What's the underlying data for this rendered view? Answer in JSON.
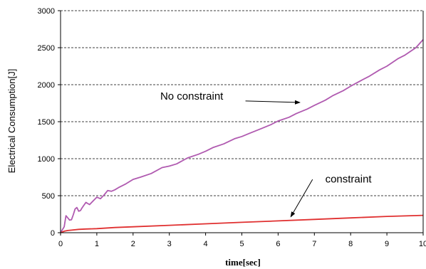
{
  "chart_data": {
    "type": "line",
    "title": "",
    "xlabel": "time[sec]",
    "ylabel": "Electrical Consumption[J]",
    "xlim": [
      0,
      10
    ],
    "ylim": [
      0,
      3000
    ],
    "x_ticks": [
      "0",
      "1",
      "2",
      "3",
      "4",
      "5",
      "6",
      "7",
      "8",
      "9",
      "10"
    ],
    "y_ticks": [
      "0",
      "500",
      "1000",
      "1500",
      "2000",
      "2500",
      "3000"
    ],
    "grid": "horizontal dashed",
    "legend": "none",
    "series": [
      {
        "color": "#b05ab0",
        "x": [
          0,
          0.1,
          0.15,
          0.2,
          0.25,
          0.3,
          0.35,
          0.4,
          0.45,
          0.5,
          0.55,
          0.6,
          0.7,
          0.8,
          0.9,
          1.0,
          1.1,
          1.2,
          1.3,
          1.4,
          1.5,
          1.6,
          1.8,
          2.0,
          2.2,
          2.5,
          2.8,
          3.0,
          3.2,
          3.5,
          3.8,
          4.0,
          4.2,
          4.5,
          4.8,
          5.0,
          5.2,
          5.5,
          5.8,
          6.0,
          6.3,
          6.5,
          6.8,
          7.0,
          7.3,
          7.5,
          7.8,
          8.0,
          8.3,
          8.5,
          8.8,
          9.0,
          9.3,
          9.5,
          9.8,
          10.0
        ],
        "y": [
          0,
          80,
          230,
          200,
          170,
          175,
          240,
          320,
          340,
          290,
          300,
          340,
          410,
          380,
          430,
          480,
          460,
          510,
          570,
          560,
          580,
          610,
          660,
          720,
          750,
          800,
          880,
          900,
          930,
          1010,
          1060,
          1100,
          1150,
          1200,
          1270,
          1300,
          1340,
          1400,
          1460,
          1510,
          1560,
          1610,
          1670,
          1720,
          1790,
          1850,
          1920,
          1980,
          2060,
          2110,
          2200,
          2250,
          2350,
          2400,
          2500,
          2610
        ]
      },
      {
        "color": "#e03030",
        "x": [
          0,
          0.1,
          0.2,
          0.3,
          0.5,
          0.7,
          1.0,
          1.5,
          2.0,
          3.0,
          4.0,
          5.0,
          6.0,
          7.0,
          8.0,
          9.0,
          10.0
        ],
        "y": [
          0,
          20,
          30,
          35,
          45,
          50,
          55,
          70,
          80,
          100,
          120,
          140,
          160,
          180,
          200,
          220,
          235
        ]
      }
    ],
    "annotations": [
      {
        "text": "No constraint",
        "x": 2.75,
        "y": 1800,
        "arrow_from": [
          5.1,
          1780
        ],
        "arrow_to": [
          6.6,
          1760
        ]
      },
      {
        "text": "constraint",
        "x": 7.3,
        "y": 680,
        "arrow_from": [
          6.95,
          720
        ],
        "arrow_to": [
          6.35,
          215
        ]
      }
    ]
  }
}
